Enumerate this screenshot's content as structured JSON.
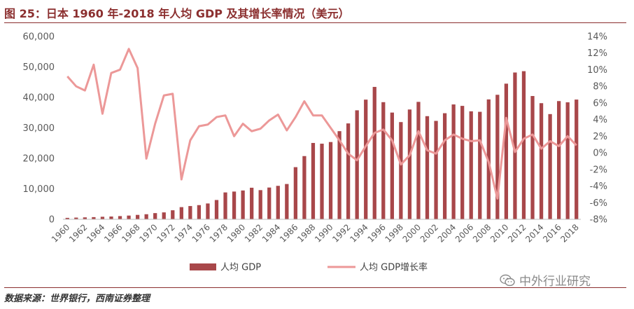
{
  "title": "图 25：日本 1960 年-2018 年人均 GDP 及其增长率情况（美元）",
  "source": "数据来源：世界银行，西南证券整理",
  "watermark": "中外行业研究",
  "colors": {
    "bar": "#a8474a",
    "line": "#ec9898",
    "axis": "#595959",
    "accent": "#8b2f2f"
  },
  "chart_data": {
    "type": "bar+line",
    "x": [
      1960,
      1961,
      1962,
      1963,
      1964,
      1965,
      1966,
      1967,
      1968,
      1969,
      1970,
      1971,
      1972,
      1973,
      1974,
      1975,
      1976,
      1977,
      1978,
      1979,
      1980,
      1981,
      1982,
      1983,
      1984,
      1985,
      1986,
      1987,
      1988,
      1989,
      1990,
      1991,
      1992,
      1993,
      1994,
      1995,
      1996,
      1997,
      1998,
      1999,
      2000,
      2001,
      2002,
      2003,
      2004,
      2005,
      2006,
      2007,
      2008,
      2009,
      2010,
      2011,
      2012,
      2013,
      2014,
      2015,
      2016,
      2017,
      2018
    ],
    "x_tick_labels": [
      "1960",
      "1962",
      "1964",
      "1966",
      "1968",
      "1970",
      "1972",
      "1974",
      "1976",
      "1978",
      "1980",
      "1982",
      "1984",
      "1986",
      "1988",
      "1990",
      "1992",
      "1994",
      "1996",
      "1998",
      "2000",
      "2002",
      "2004",
      "2006",
      "2008",
      "2010",
      "2012",
      "2014",
      "2016",
      "2018"
    ],
    "series": [
      {
        "name": "人均 GDP",
        "type": "bar",
        "axis": "left",
        "values": [
          479,
          564,
          636,
          718,
          836,
          920,
          1058,
          1228,
          1450,
          1669,
          2037,
          2272,
          2967,
          3997,
          4354,
          4659,
          5198,
          6335,
          8821,
          9105,
          9463,
          10361,
          9578,
          10425,
          10984,
          11585,
          17112,
          20745,
          25052,
          24813,
          25359,
          28925,
          31465,
          35766,
          39268,
          43440,
          38437,
          35022,
          31903,
          36027,
          38532,
          33846,
          32289,
          34809,
          37689,
          37218,
          35434,
          35275,
          39339,
          40855,
          44508,
          48168,
          48603,
          40454,
          38109,
          34524,
          38794,
          38387,
          39287
        ]
      },
      {
        "name": "人均 GDP增长率",
        "type": "line",
        "axis": "right",
        "values": [
          9.2,
          8.0,
          7.5,
          10.6,
          4.7,
          9.6,
          10.0,
          12.5,
          10.2,
          -0.7,
          3.5,
          6.9,
          7.1,
          -3.2,
          1.5,
          3.2,
          3.4,
          4.3,
          4.5,
          2.0,
          3.5,
          2.6,
          2.9,
          3.9,
          4.6,
          2.7,
          4.3,
          6.2,
          4.5,
          4.5,
          3.0,
          1.5,
          -0.1,
          -0.9,
          0.8,
          2.4,
          2.8,
          1.5,
          -1.4,
          -0.3,
          2.6,
          0.3,
          -0.1,
          1.5,
          2.2,
          1.7,
          1.4,
          1.5,
          -1.1,
          -5.5,
          4.2,
          0.1,
          1.7,
          2.2,
          0.5,
          1.4,
          0.8,
          2.0,
          0.9
        ]
      }
    ],
    "y_left": {
      "min": 0,
      "max": 60000,
      "ticks": [
        "0",
        "10,000",
        "20,000",
        "30,000",
        "40,000",
        "50,000",
        "60,000"
      ]
    },
    "y_right": {
      "min": -8,
      "max": 14,
      "ticks": [
        "-8%",
        "-6%",
        "-4%",
        "-2%",
        "0%",
        "2%",
        "4%",
        "6%",
        "8%",
        "10%",
        "12%",
        "14%"
      ]
    },
    "legend": {
      "position": "bottom",
      "items": [
        "人均 GDP",
        "人均 GDP增长率"
      ]
    },
    "grid": false
  }
}
